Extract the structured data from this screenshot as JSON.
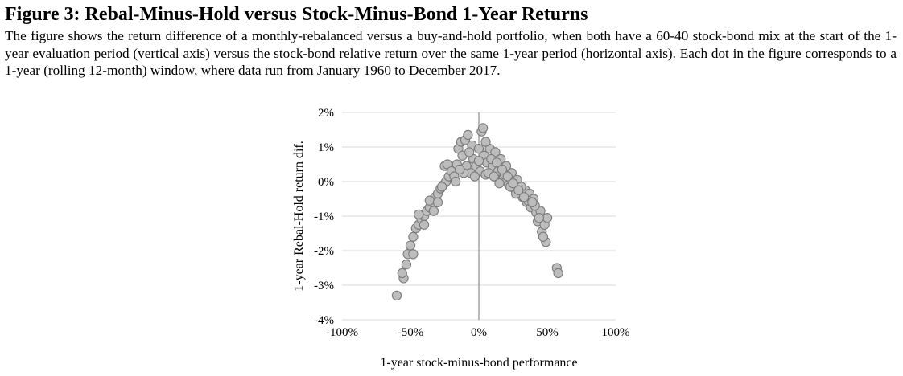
{
  "figure": {
    "title": "Figure 3: Rebal-Minus-Hold versus Stock-Minus-Bond 1-Year Returns",
    "caption": "The figure shows the return difference of a monthly-rebalanced versus a buy-and-hold portfolio, when both have a 60-40 stock-bond mix at the start of the 1-year evaluation period (vertical axis) versus the stock-bond relative return over the same 1-year period (horizontal axis). Each dot in the figure corresponds to a 1-year (rolling 12-month) window, where data run from January 1960 to December 2017."
  },
  "chart_data": {
    "type": "scatter",
    "xlabel": "1-year stock-minus-bond performance",
    "ylabel": "1-year Rebal-Hold return dif.",
    "xlim": [
      -1.0,
      1.0
    ],
    "ylim": [
      -0.04,
      0.02
    ],
    "x_ticks": [
      -1.0,
      -0.5,
      0,
      0.5,
      1.0
    ],
    "x_tick_labels": [
      "-100%",
      "-50%",
      "0%",
      "50%",
      "100%"
    ],
    "y_ticks": [
      0.02,
      0.01,
      0,
      -0.01,
      -0.02,
      -0.03,
      -0.04
    ],
    "y_tick_labels": [
      "2%",
      "1%",
      "0%",
      "-1%",
      "-2%",
      "-3%",
      "-4%"
    ],
    "grid": "horizontal",
    "marker_color": "#bdbdbd",
    "marker_edge": "#7a7a7a",
    "series": [
      {
        "points": [
          [
            -0.6,
            -0.033
          ],
          [
            -0.55,
            -0.028
          ],
          [
            -0.56,
            -0.0265
          ],
          [
            -0.53,
            -0.024
          ],
          [
            -0.52,
            -0.021
          ],
          [
            -0.48,
            -0.021
          ],
          [
            -0.5,
            -0.0185
          ],
          [
            -0.48,
            -0.016
          ],
          [
            -0.46,
            -0.0135
          ],
          [
            -0.44,
            -0.0125
          ],
          [
            -0.42,
            -0.011
          ],
          [
            -0.4,
            -0.01
          ],
          [
            -0.38,
            -0.0085
          ],
          [
            -0.36,
            -0.0075
          ],
          [
            -0.34,
            -0.006
          ],
          [
            -0.32,
            -0.0045
          ],
          [
            -0.3,
            -0.0035
          ],
          [
            -0.28,
            -0.002
          ],
          [
            -0.26,
            -0.001
          ],
          [
            -0.24,
            0.0
          ],
          [
            -0.44,
            -0.0095
          ],
          [
            -0.4,
            -0.0125
          ],
          [
            -0.36,
            -0.0055
          ],
          [
            -0.33,
            -0.0085
          ],
          [
            -0.3,
            -0.006
          ],
          [
            -0.27,
            -0.0015
          ],
          [
            -0.25,
            0.0045
          ],
          [
            -0.23,
            0.005
          ],
          [
            -0.22,
            0.0015
          ],
          [
            -0.2,
            0.003
          ],
          [
            -0.18,
            0.0015
          ],
          [
            -0.16,
            0.005
          ],
          [
            -0.15,
            0.0095
          ],
          [
            -0.13,
            0.0115
          ],
          [
            -0.12,
            0.0075
          ],
          [
            -0.1,
            0.012
          ],
          [
            -0.09,
            0.0045
          ],
          [
            -0.08,
            0.0135
          ],
          [
            -0.06,
            0.0025
          ],
          [
            -0.05,
            0.0105
          ],
          [
            -0.04,
            0.0065
          ],
          [
            -0.02,
            0.0045
          ],
          [
            0.0,
            0.0095
          ],
          [
            0.01,
            0.003
          ],
          [
            0.02,
            0.0145
          ],
          [
            0.03,
            0.0155
          ],
          [
            0.04,
            0.0075
          ],
          [
            0.05,
            0.002
          ],
          [
            0.06,
            0.0055
          ],
          [
            0.08,
            0.0095
          ],
          [
            0.1,
            0.0045
          ],
          [
            0.12,
            0.0085
          ],
          [
            0.14,
            0.003
          ],
          [
            0.16,
            0.0065
          ],
          [
            0.18,
            0.001
          ],
          [
            0.2,
            0.0045
          ],
          [
            0.22,
            -0.001
          ],
          [
            0.24,
            0.0025
          ],
          [
            0.26,
            -0.002
          ],
          [
            0.28,
            0.0005
          ],
          [
            0.3,
            -0.003
          ],
          [
            0.32,
            -0.0045
          ],
          [
            0.34,
            -0.0025
          ],
          [
            0.35,
            -0.006
          ],
          [
            0.37,
            -0.0035
          ],
          [
            0.38,
            -0.0075
          ],
          [
            0.4,
            -0.005
          ],
          [
            0.42,
            -0.009
          ],
          [
            0.43,
            -0.0115
          ],
          [
            0.45,
            -0.0085
          ],
          [
            0.46,
            -0.0145
          ],
          [
            0.48,
            -0.0125
          ],
          [
            0.49,
            -0.0175
          ],
          [
            0.5,
            -0.0105
          ],
          [
            0.47,
            -0.016
          ],
          [
            0.57,
            -0.025
          ],
          [
            0.58,
            -0.0265
          ],
          [
            -0.17,
            0.0
          ],
          [
            -0.11,
            0.0025
          ],
          [
            -0.07,
            0.0085
          ],
          [
            -0.03,
            0.0015
          ],
          [
            0.0,
            0.006
          ],
          [
            0.07,
            0.0025
          ],
          [
            0.09,
            0.0065
          ],
          [
            0.11,
            0.0015
          ],
          [
            0.15,
            -0.0005
          ],
          [
            0.19,
            0.002
          ],
          [
            0.23,
            -0.0015
          ],
          [
            0.27,
            -0.0035
          ],
          [
            0.31,
            -0.0015
          ],
          [
            0.36,
            -0.0055
          ],
          [
            0.41,
            -0.007
          ],
          [
            0.44,
            -0.0105
          ],
          [
            -0.14,
            0.0035
          ],
          [
            0.05,
            0.0115
          ],
          [
            0.13,
            0.0055
          ],
          [
            0.17,
            0.0035
          ],
          [
            0.21,
            0.0015
          ],
          [
            0.25,
            -0.0005
          ],
          [
            0.29,
            -0.0025
          ],
          [
            0.33,
            -0.0045
          ],
          [
            0.39,
            -0.006
          ]
        ]
      }
    ]
  }
}
